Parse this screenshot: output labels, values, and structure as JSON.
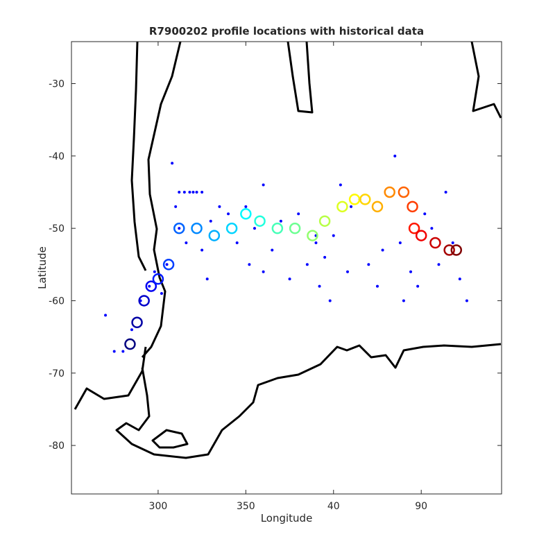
{
  "chart_data": {
    "type": "scatter",
    "title": "R7900202 profile locations with historical data",
    "xlabel": "Longitude",
    "ylabel": "Latitude",
    "xlim": [
      250.6,
      495.8
    ],
    "ylim": [
      -86.7,
      -24.2
    ],
    "xticks": [
      300,
      350,
      {
        "value": 400,
        "label": "40"
      },
      {
        "value": 450,
        "label": "90"
      }
    ],
    "yticks": [
      -80,
      -70,
      -60,
      -50,
      -40,
      -30
    ],
    "series": [
      {
        "color": "#0000ff",
        "x": [
          312,
          315,
          318,
          320,
          322,
          325,
          310,
          312,
          316,
          330,
          335,
          340,
          345,
          350,
          352,
          355,
          360,
          365,
          370,
          375,
          380,
          385,
          390,
          392,
          395,
          398,
          400,
          404,
          408,
          410,
          415,
          420,
          425,
          428,
          435,
          438,
          440,
          444,
          448,
          452,
          456,
          460,
          464,
          468,
          472,
          476,
          290,
          285,
          280,
          275,
          270,
          295,
          298,
          302,
          305,
          308,
          325,
          328,
          360,
          390
        ],
        "values": [
          -45,
          -45,
          -45,
          -45,
          -45,
          -45,
          -47,
          -50,
          -52,
          -49,
          -47,
          -48,
          -52,
          -47,
          -55,
          -50,
          -56,
          -53,
          -49,
          -57,
          -48,
          -55,
          -52,
          -58,
          -54,
          -60,
          -51,
          -44,
          -56,
          -47,
          -46,
          -55,
          -58,
          -53,
          -40,
          -52,
          -60,
          -56,
          -58,
          -48,
          -50,
          -55,
          -45,
          -52,
          -57,
          -60,
          -60,
          -64,
          -67,
          -67,
          -62,
          -58,
          -56,
          -59,
          -55,
          -41,
          -53,
          -57,
          -44,
          -51
        ]
      },
      {
        "colormap": "jet",
        "x": [
          284,
          288,
          292,
          296,
          300,
          306,
          312,
          322,
          332,
          342,
          350,
          358,
          368,
          378,
          388,
          395,
          405,
          412,
          418,
          425,
          432,
          440,
          445,
          446,
          450,
          458,
          466,
          470
        ],
        "values": [
          -66,
          -63,
          -60,
          -58,
          -57,
          -55,
          -50,
          -50,
          -51,
          -50,
          -48,
          -49,
          -50,
          -50,
          -51,
          -49,
          -47,
          -46,
          -46,
          -47,
          -45,
          -45,
          -47,
          -50,
          -51,
          -52,
          -53,
          -53
        ]
      }
    ]
  }
}
